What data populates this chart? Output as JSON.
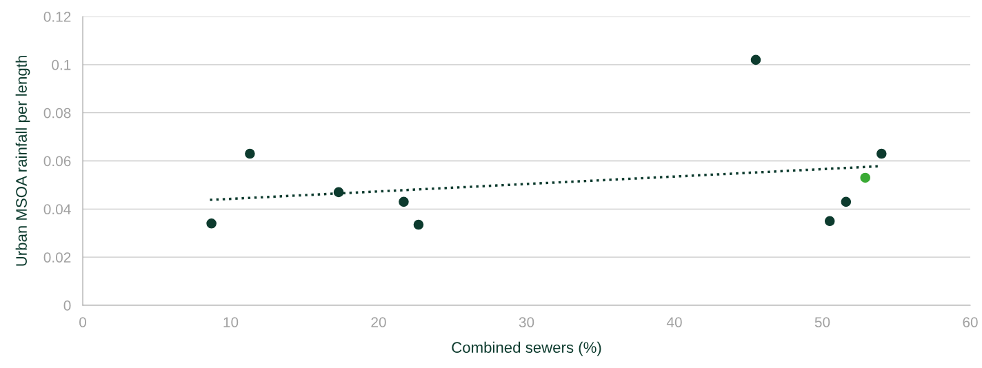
{
  "chart_data": {
    "type": "scatter",
    "xlabel": "Combined sewers (%)",
    "ylabel": "Urban MSOA rainfall per length",
    "xlim": [
      0,
      60
    ],
    "xticks": [
      0,
      10,
      20,
      30,
      40,
      50,
      60
    ],
    "ylim": [
      0,
      0.12
    ],
    "yticks": [
      0,
      0.02,
      0.04,
      0.06,
      0.08,
      0.1,
      0.12
    ],
    "grid": "y",
    "marker": "circle",
    "series": [
      {
        "color": "#0d3b2e",
        "x": [
          8.7,
          11.3,
          17.3,
          21.7,
          22.7,
          45.5,
          50.5,
          51.6,
          54.0
        ],
        "values": [
          0.034,
          0.063,
          0.047,
          0.043,
          0.0335,
          0.102,
          0.035,
          0.043,
          0.063
        ]
      },
      {
        "color": "#3aaa35",
        "x": [
          52.9
        ],
        "values": [
          0.053
        ]
      },
      {
        "type": "line",
        "color": "#0d3b2e",
        "line_style": "dotted",
        "marker": "none",
        "x": [
          8.6,
          53.9
        ],
        "values": [
          0.0438,
          0.0578
        ]
      }
    ]
  }
}
